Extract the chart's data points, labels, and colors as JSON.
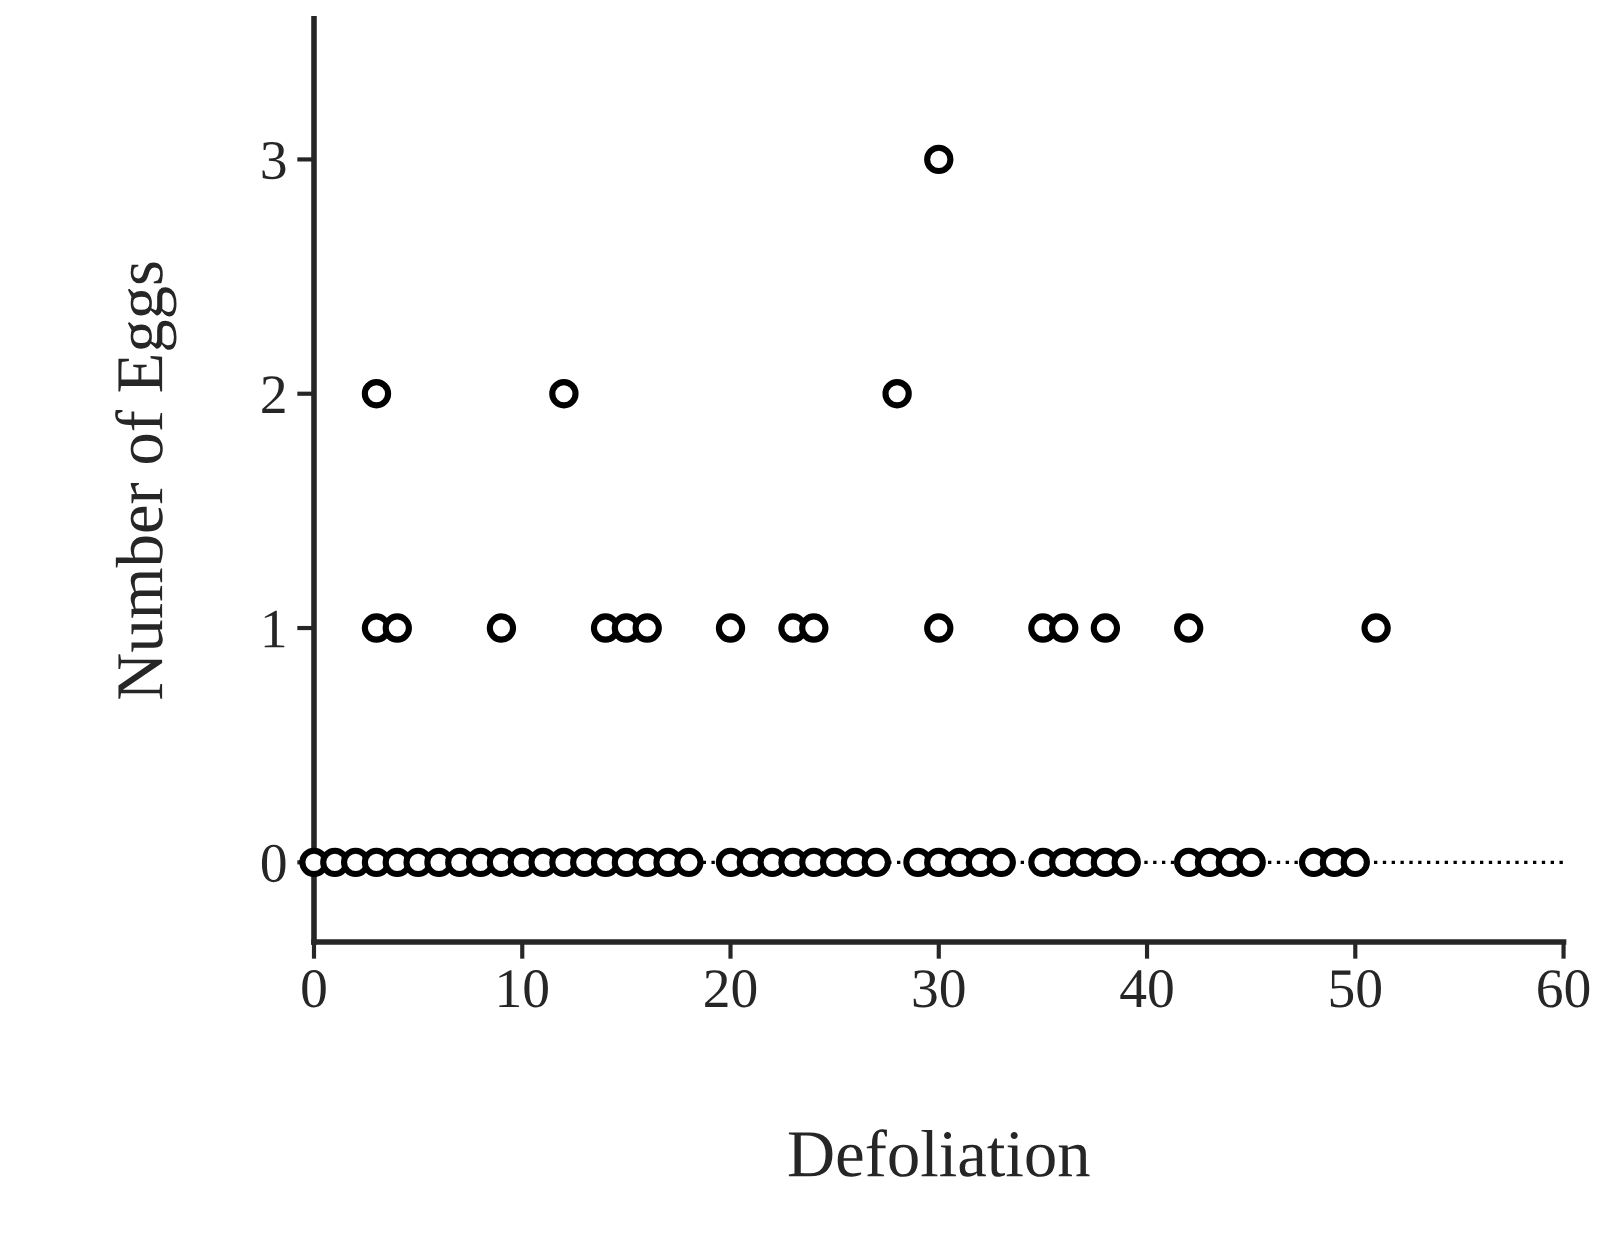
{
  "chart_data": {
    "type": "scatter",
    "xlabel": "Defoliation",
    "ylabel": "Number of Eggs",
    "x": [
      0,
      1,
      2,
      3,
      4,
      5,
      6,
      7,
      8,
      9,
      10,
      11,
      12,
      13,
      14,
      15,
      16,
      17,
      18,
      20,
      21,
      22,
      23,
      24,
      25,
      26,
      27,
      29,
      30,
      31,
      32,
      33,
      35,
      36,
      37,
      38,
      39,
      42,
      43,
      44,
      45,
      48,
      49,
      50,
      3,
      4,
      9,
      14,
      15,
      16,
      20,
      23,
      24,
      30,
      35,
      36,
      38,
      42,
      51,
      3,
      12,
      28,
      30
    ],
    "values": [
      0,
      0,
      0,
      0,
      0,
      0,
      0,
      0,
      0,
      0,
      0,
      0,
      0,
      0,
      0,
      0,
      0,
      0,
      0,
      0,
      0,
      0,
      0,
      0,
      0,
      0,
      0,
      0,
      0,
      0,
      0,
      0,
      0,
      0,
      0,
      0,
      0,
      0,
      0,
      0,
      0,
      0,
      0,
      0,
      1,
      1,
      1,
      1,
      1,
      1,
      1,
      1,
      1,
      1,
      1,
      1,
      1,
      1,
      1,
      2,
      2,
      2,
      3
    ],
    "color": "#000000",
    "marker": "circle",
    "xlim": [
      0,
      60
    ],
    "xticks": [
      0,
      10,
      20,
      30,
      40,
      50,
      60
    ],
    "ylim": [
      -0.34,
      3.6
    ],
    "yticks": [
      0,
      1,
      2,
      3
    ],
    "ref_lines": [
      {
        "axis": "y",
        "value": 0,
        "line_style": "dotted",
        "color": "#000000"
      }
    ],
    "grid": false
  }
}
